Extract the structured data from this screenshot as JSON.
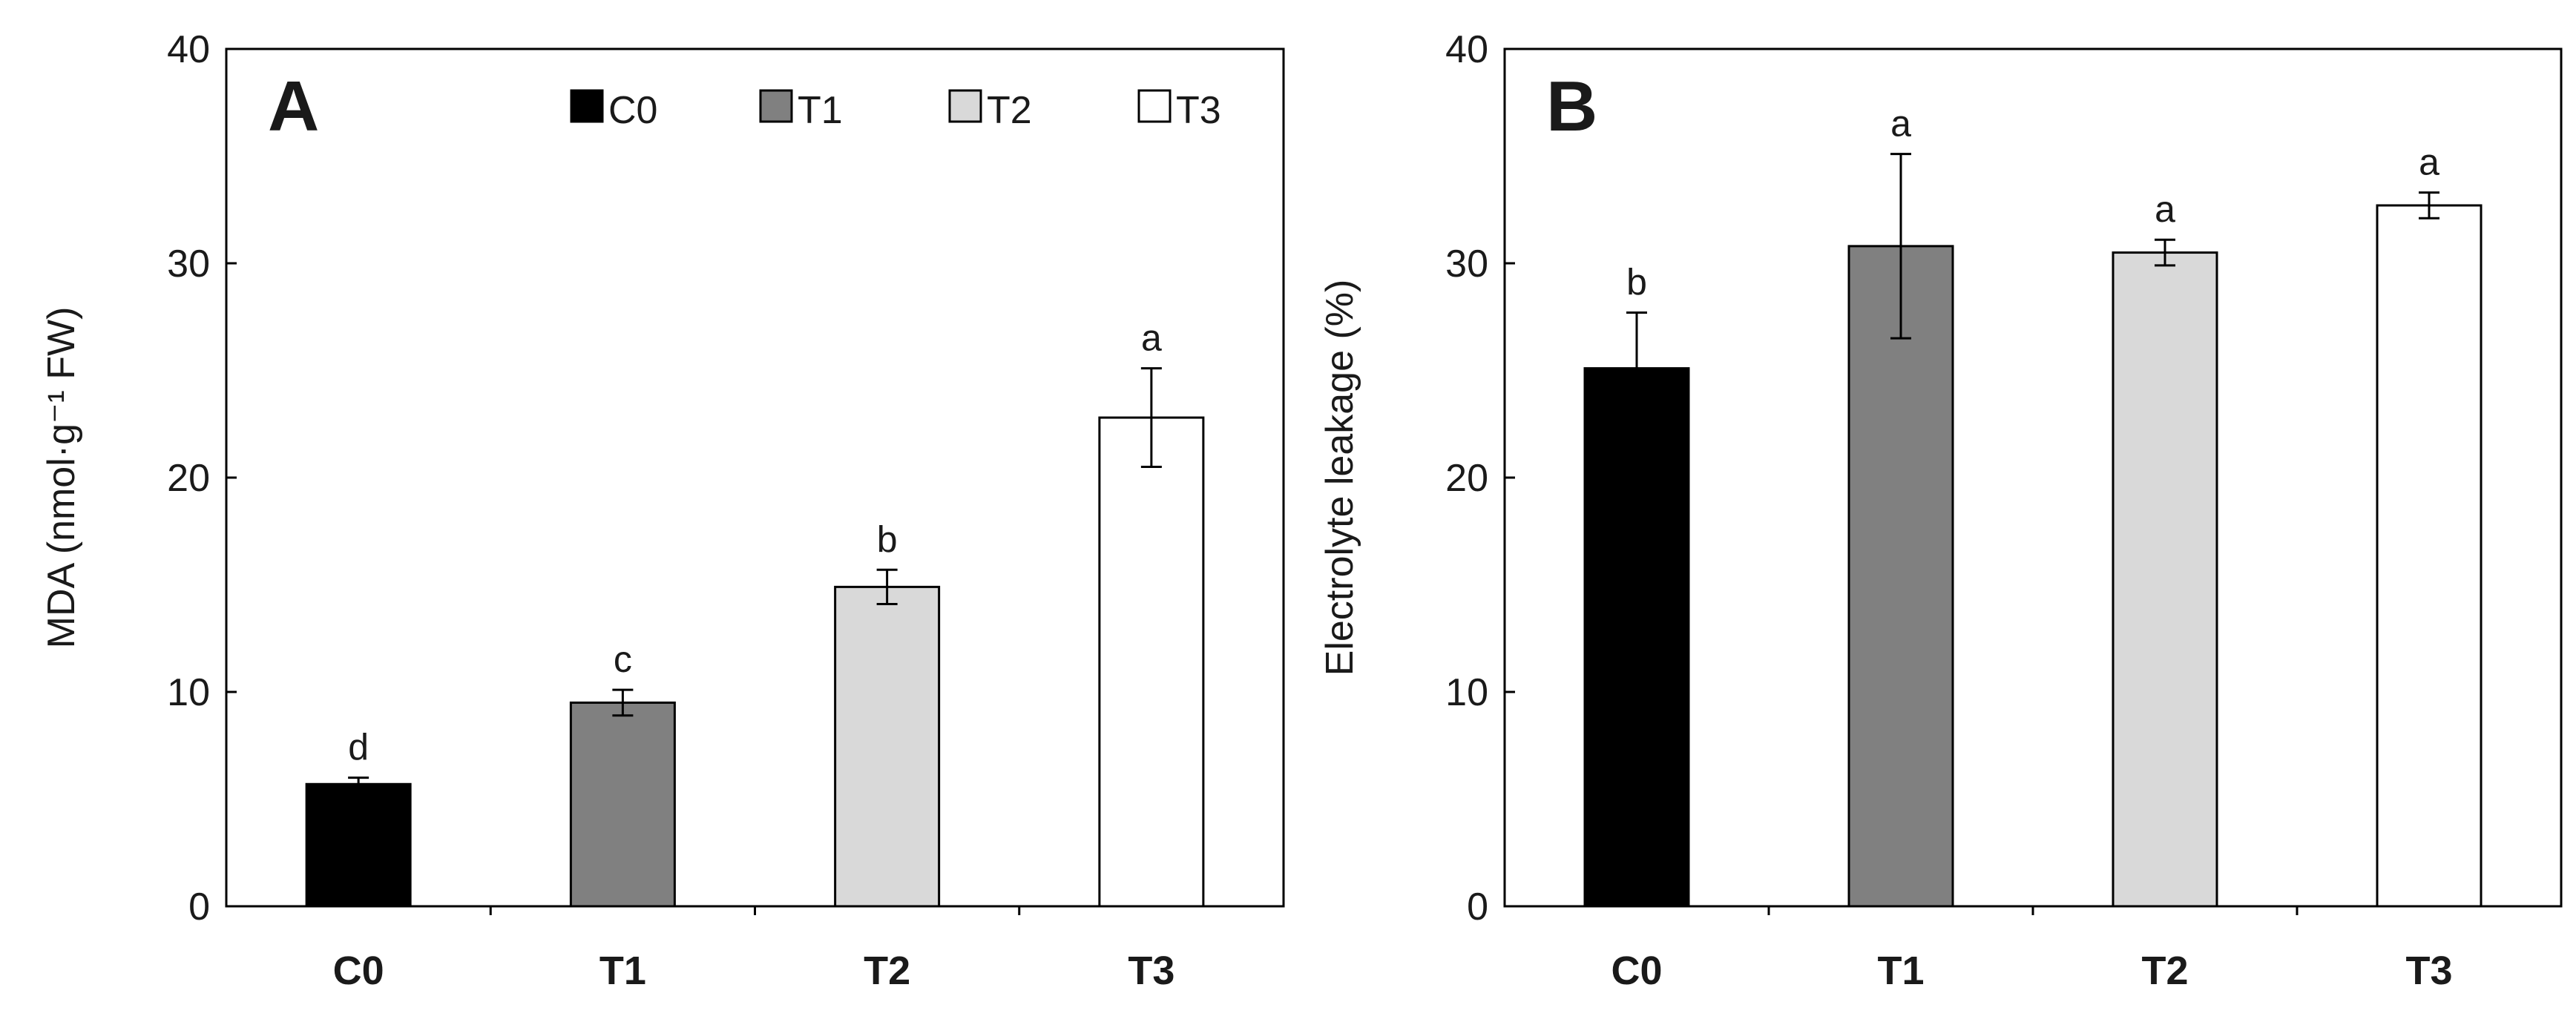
{
  "chart_data": [
    {
      "type": "bar",
      "panel": "A",
      "categories": [
        "C0",
        "T1",
        "T2",
        "T3"
      ],
      "values": [
        5.7,
        9.5,
        14.9,
        22.8
      ],
      "errors": [
        0.3,
        0.6,
        0.8,
        2.3
      ],
      "significance": [
        "d",
        "c",
        "b",
        "a"
      ],
      "ylabel": "MDA (nmol·g⁻¹ FW)",
      "xlabel": "",
      "ylim": [
        0,
        40
      ],
      "yticks": [
        0,
        10,
        20,
        30,
        40
      ],
      "colors": [
        "#000000",
        "#808080",
        "#d9d9d9",
        "#ffffff"
      ],
      "legend": {
        "position": "top-right",
        "entries": [
          {
            "label": "C0",
            "color": "#000000"
          },
          {
            "label": "T1",
            "color": "#808080"
          },
          {
            "label": "T2",
            "color": "#d9d9d9"
          },
          {
            "label": "T3",
            "color": "#ffffff"
          }
        ]
      }
    },
    {
      "type": "bar",
      "panel": "B",
      "categories": [
        "C0",
        "T1",
        "T2",
        "T3"
      ],
      "values": [
        25.1,
        30.8,
        30.5,
        32.7
      ],
      "errors": [
        2.6,
        4.3,
        0.6,
        0.6
      ],
      "significance": [
        "b",
        "a",
        "a",
        "a"
      ],
      "ylabel": "Electrolyte leakage (%)",
      "xlabel": "",
      "ylim": [
        0,
        40
      ],
      "yticks": [
        0,
        10,
        20,
        30,
        40
      ],
      "colors": [
        "#000000",
        "#808080",
        "#d9d9d9",
        "#ffffff"
      ]
    }
  ]
}
